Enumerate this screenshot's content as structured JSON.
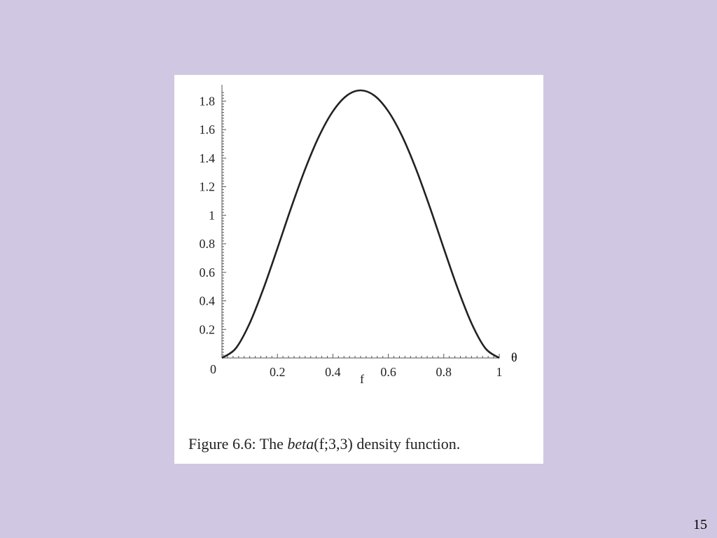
{
  "slide": {
    "number": "15",
    "background": "#d0c8e2"
  },
  "annotation": {
    "theta": "θ"
  },
  "figure": {
    "caption_prefix": "Figure 6.6:  The ",
    "caption_math": "beta",
    "caption_args": "(f;3,3)",
    "caption_suffix": " density function."
  },
  "chart_data": {
    "type": "line",
    "title": "",
    "xlabel": "f",
    "ylabel": "",
    "xlim": [
      0,
      1
    ],
    "ylim": [
      0,
      1.875
    ],
    "x_ticks": [
      0.2,
      0.4,
      0.6,
      0.8,
      1
    ],
    "x_tick_labels": [
      "0.2",
      "0.4",
      "0.6",
      "0.8",
      "1"
    ],
    "y_ticks": [
      0,
      0.2,
      0.4,
      0.6,
      0.8,
      1,
      1.2,
      1.4,
      1.6,
      1.8
    ],
    "y_tick_labels": [
      "0",
      "0.2",
      "0.4",
      "0.6",
      "0.8",
      "1",
      "1.2",
      "1.4",
      "1.6",
      "1.8"
    ],
    "series": [
      {
        "x": [
          0,
          0.05,
          0.1,
          0.15,
          0.2,
          0.25,
          0.3,
          0.35,
          0.4,
          0.45,
          0.5,
          0.55,
          0.6,
          0.65,
          0.7,
          0.75,
          0.8,
          0.85,
          0.9,
          0.95,
          1
        ],
        "values": [
          0,
          0.068,
          0.243,
          0.488,
          0.768,
          1.055,
          1.323,
          1.553,
          1.728,
          1.838,
          1.875,
          1.838,
          1.728,
          1.553,
          1.323,
          1.055,
          0.768,
          0.488,
          0.243,
          0.068,
          0
        ],
        "color": "#222222"
      }
    ],
    "grid": false,
    "legend": "none"
  }
}
